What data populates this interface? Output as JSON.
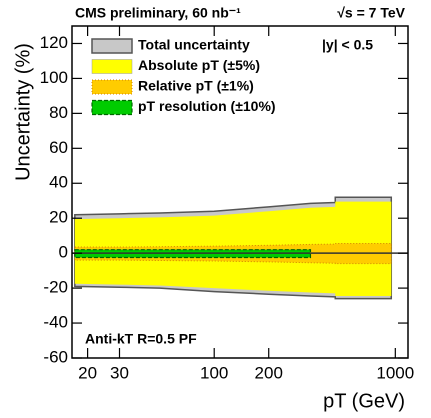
{
  "chart_data": {
    "type": "band",
    "title": "CMS preliminary, 60 nb⁻¹",
    "subtitle": "√s = 7 TeV",
    "annotations": [
      "|y| < 0.5",
      "Anti-kT R=0.5 PF"
    ],
    "x_label": "pT (GeV)",
    "y_label": "Uncertainty (%)",
    "x": [
      17,
      30,
      50,
      100,
      200,
      340,
      466,
      466,
      950
    ],
    "series": [
      {
        "name": "Total uncertainty",
        "color": "#c8c8c8",
        "upper": [
          22,
          22.5,
          23,
          24,
          26.5,
          28.5,
          29,
          32,
          32
        ],
        "lower": [
          -19,
          -19.5,
          -20,
          -22,
          -23.5,
          -24.5,
          -25,
          -26,
          -26
        ]
      },
      {
        "name": "Absolute pT (±5%)",
        "color": "#ffff00",
        "upper": [
          19.5,
          20,
          20.5,
          21.5,
          24,
          26,
          26.5,
          29.5,
          29.5
        ],
        "lower": [
          -17.5,
          -18,
          -18.5,
          -20,
          -21.5,
          -22.5,
          -23,
          -24.5,
          -24.5
        ]
      },
      {
        "name": "Relative pT (±1%)",
        "color": "#ffcc00",
        "upper": [
          3.5,
          3.5,
          3.7,
          4,
          4.5,
          5,
          5.2,
          5.5,
          5.5
        ],
        "lower": [
          -4,
          -4,
          -4.2,
          -4.5,
          -5,
          -5.5,
          -5.8,
          -6,
          -6
        ]
      },
      {
        "name": "pT resolution (±10%)",
        "color": "#00cc00",
        "upper": [
          2,
          2,
          2,
          2,
          2,
          2,
          null,
          null,
          null
        ],
        "lower": [
          -2.5,
          -2.5,
          -2.5,
          -2.5,
          -2.5,
          -2.5,
          null,
          null,
          null
        ]
      }
    ],
    "xlim": [
      16.4,
      1175
    ],
    "xlog": true,
    "xticks": [
      20,
      30,
      100,
      200,
      1000
    ],
    "ylim": [
      -60,
      130
    ],
    "yticks": [
      -60,
      -40,
      -20,
      0,
      20,
      40,
      60,
      80,
      100,
      120
    ]
  }
}
